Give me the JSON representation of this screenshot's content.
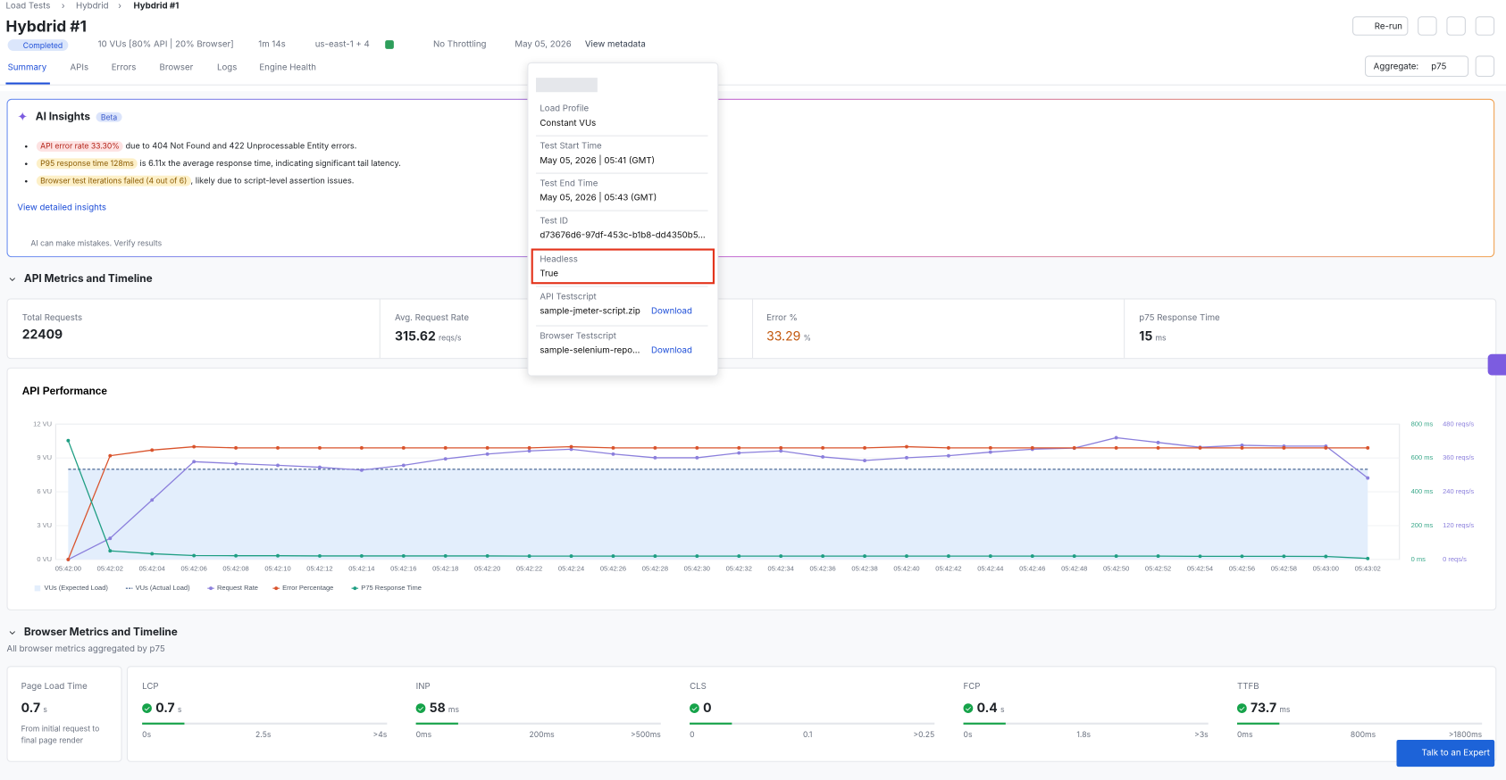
{
  "breadcrumb": [
    "Load Tests",
    "Hybdrid",
    "Hybdrid #1"
  ],
  "header": {
    "title": "Hybdrid #1",
    "status": "Completed",
    "vus": "10 VUs [80% API | 20% Browser]",
    "duration": "1m 14s",
    "regions": "us-east-1 + 4",
    "throttling": "No Throttling",
    "date": "May 05, 2026",
    "metadata_link": "View metadata",
    "rerun": "Re-run"
  },
  "tabs": [
    "Summary",
    "APIs",
    "Errors",
    "Browser",
    "Logs",
    "Engine Health"
  ],
  "aggregate": {
    "label": "Aggregate:",
    "value": "p75"
  },
  "ai_insights": {
    "title": "AI Insights",
    "badge": "Beta",
    "items": [
      {
        "tag": "API error rate 33.30%",
        "text": "due to 404 Not Found and 422 Unprocessable Entity errors."
      },
      {
        "tag": "P95 response time 128ms",
        "text": "is 6.11x the average response time, indicating significant tail latency."
      },
      {
        "tag": "Browser test iterations failed (4 out of 6)",
        "text": ", likely due to script-level assertion issues."
      }
    ],
    "link": "View detailed insights",
    "disclaimer": "AI can make mistakes. Verify results"
  },
  "metadata": {
    "fields": [
      {
        "label": "Load Profile",
        "value": "Constant VUs"
      },
      {
        "label": "Test Start Time",
        "value": "May 05, 2026 | 05:41 (GMT)"
      },
      {
        "label": "Test End Time",
        "value": "May 05, 2026 | 05:43 (GMT)"
      },
      {
        "label": "Test ID",
        "value": "d73676d6-97df-453c-b1b8-dd4350b5..."
      },
      {
        "label": "Headless",
        "value": "True"
      },
      {
        "label": "API Testscript",
        "value": "sample-jmeter-script.zip",
        "action": "Download"
      },
      {
        "label": "Browser Testscript",
        "value": "sample-selenium-repo...",
        "action": "Download"
      }
    ]
  },
  "api_metrics": {
    "title": "API Metrics and Timeline",
    "cards": [
      {
        "label": "Total Requests",
        "value": "22409"
      },
      {
        "label": "Avg. Request Rate",
        "value": "315.62",
        "unit": "reqs/s"
      },
      {
        "label": "Error %",
        "value": "33.29",
        "unit": "%"
      },
      {
        "label": "p75 Response Time",
        "value": "15",
        "unit": "ms"
      }
    ]
  },
  "chart_data": {
    "type": "line",
    "title": "API Performance",
    "categories": [
      "05:42:00",
      "05:42:02",
      "05:42:04",
      "05:42:06",
      "05:42:08",
      "05:42:10",
      "05:42:12",
      "05:42:14",
      "05:42:16",
      "05:42:18",
      "05:42:20",
      "05:42:22",
      "05:42:24",
      "05:42:26",
      "05:42:28",
      "05:42:30",
      "05:42:32",
      "05:42:34",
      "05:42:36",
      "05:42:38",
      "05:42:40",
      "05:42:42",
      "05:42:44",
      "05:42:46",
      "05:42:48",
      "05:42:50",
      "05:42:52",
      "05:42:54",
      "05:42:56",
      "05:42:58",
      "05:43:00",
      "05:43:02"
    ],
    "ylim": [
      0,
      12
    ],
    "yticks": [
      {
        "value": 0,
        "label": "0 VU"
      },
      {
        "value": 3,
        "label": "3 VU"
      },
      {
        "value": 6,
        "label": "6 VU"
      },
      {
        "value": 9,
        "label": "9 VU"
      },
      {
        "value": 12,
        "label": "12 VU"
      }
    ],
    "y2lim": [
      0,
      800
    ],
    "y2ticks": [
      {
        "value": 0,
        "label": "0 ms"
      },
      {
        "value": 200,
        "label": "200 ms"
      },
      {
        "value": 400,
        "label": "400 ms"
      },
      {
        "value": 600,
        "label": "600 ms"
      },
      {
        "value": 800,
        "label": "800 ms"
      }
    ],
    "y3lim": [
      0,
      480
    ],
    "y3ticks": [
      {
        "value": 0,
        "label": "0 reqs/s"
      },
      {
        "value": 120,
        "label": "120 reqs/s"
      },
      {
        "value": 240,
        "label": "240 reqs/s"
      },
      {
        "value": 360,
        "label": "360 reqs/s"
      },
      {
        "value": 480,
        "label": "480 reqs/s"
      }
    ],
    "series": [
      {
        "name": "VUs (Expected Load)",
        "color": "#e3eefc",
        "axis": "y",
        "area": true,
        "values": [
          8,
          8,
          8,
          8,
          8,
          8,
          8,
          8,
          8,
          8,
          8,
          8,
          8,
          8,
          8,
          8,
          8,
          8,
          8,
          8,
          8,
          8,
          8,
          8,
          8,
          8,
          8,
          8,
          8,
          8,
          8,
          8
        ]
      },
      {
        "name": "VUs (Actual Load)",
        "color": "#3b5b8c",
        "axis": "y",
        "dashed": true,
        "values": [
          8,
          8,
          8,
          8,
          8,
          8,
          8,
          8,
          8,
          8,
          8,
          8,
          8,
          8,
          8,
          8,
          8,
          8,
          8,
          8,
          8,
          8,
          8,
          8,
          8,
          8,
          8,
          8,
          8,
          8,
          8,
          8
        ]
      },
      {
        "name": "Request Rate",
        "color": "#8b7fdc",
        "axis": "y3",
        "values": [
          0,
          75,
          211,
          347,
          340,
          334,
          327,
          317,
          334,
          357,
          374,
          385,
          391,
          374,
          361,
          361,
          378,
          385,
          364,
          351,
          361,
          368,
          381,
          391,
          395,
          432,
          415,
          398,
          405,
          402,
          402,
          289
        ]
      },
      {
        "name": "Error Percentage",
        "color": "#d9532c",
        "axis": "y",
        "values": [
          0,
          9.2,
          9.7,
          10,
          9.9,
          9.9,
          9.9,
          9.9,
          9.9,
          9.9,
          9.9,
          9.9,
          10,
          9.9,
          9.9,
          9.9,
          9.9,
          9.9,
          9.9,
          9.9,
          10,
          9.9,
          9.9,
          9.9,
          9.9,
          9.9,
          9.9,
          9.9,
          9.9,
          9.9,
          9.9,
          9.9
        ]
      },
      {
        "name": "P75 Response Time",
        "color": "#1f9e83",
        "axis": "y2",
        "values": [
          703,
          51,
          34,
          23,
          22,
          22,
          21,
          21,
          21,
          21,
          21,
          20,
          20,
          20,
          20,
          20,
          20,
          20,
          20,
          20,
          20,
          20,
          20,
          20,
          20,
          20,
          20,
          19,
          19,
          19,
          18,
          6
        ]
      }
    ]
  },
  "browser_metrics": {
    "title": "Browser Metrics and Timeline",
    "subtitle": "All browser metrics aggregated by p75",
    "page_load": {
      "label": "Page Load Time",
      "value": "0.7",
      "unit": "s",
      "note": "From initial request to final page render"
    },
    "metrics": [
      {
        "label": "LCP",
        "value": "0.7",
        "unit": "s",
        "scale": [
          "0s",
          "2.5s",
          ">4s"
        ]
      },
      {
        "label": "INP",
        "value": "58",
        "unit": "ms",
        "scale": [
          "0ms",
          "200ms",
          ">500ms"
        ]
      },
      {
        "label": "CLS",
        "value": "0",
        "scale": [
          "0",
          "0.1",
          ">0.25"
        ]
      },
      {
        "label": "FCP",
        "value": "0.4",
        "unit": "s",
        "scale": [
          "0s",
          "1.8s",
          ">3s"
        ]
      },
      {
        "label": "TTFB",
        "value": "73.7",
        "unit": "ms",
        "scale": [
          "0ms",
          "800ms",
          ">1800ms"
        ]
      }
    ]
  },
  "expert_button": "Talk to an Expert"
}
